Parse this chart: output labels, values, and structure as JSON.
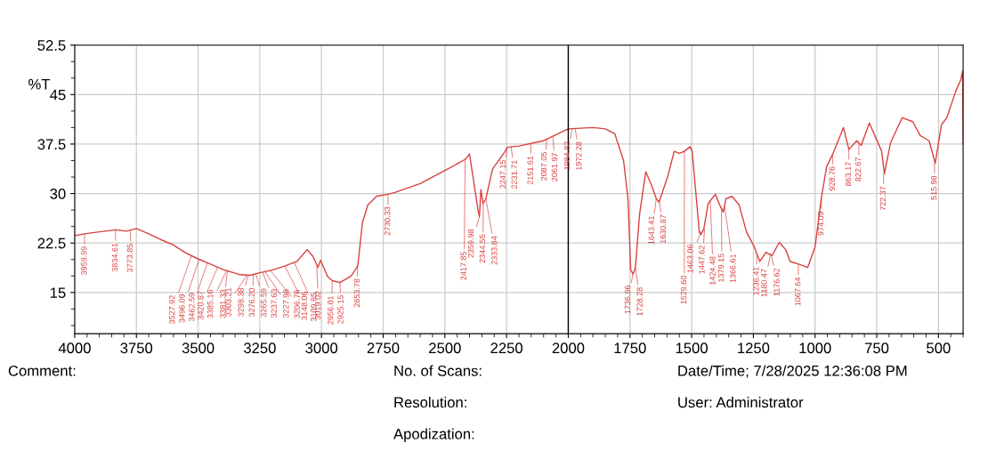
{
  "chart_data": {
    "type": "line",
    "ylabel": "%T",
    "x": [
      4000,
      3960,
      3900,
      3834,
      3790,
      3750,
      3700,
      3650,
      3600,
      3550,
      3500,
      3450,
      3400,
      3330,
      3290,
      3250,
      3200,
      3150,
      3100,
      3058,
      3035,
      3014,
      3004,
      2975,
      2956,
      2925,
      2880,
      2853,
      2834,
      2812,
      2776,
      2730,
      2700,
      2600,
      2500,
      2450,
      2417,
      2400,
      2365,
      2360,
      2354,
      2345,
      2334,
      2307,
      2256,
      2247,
      2200,
      2100,
      2000,
      1900,
      1850,
      1812,
      1776,
      1758,
      1747,
      1737,
      1728,
      1711,
      1686,
      1660,
      1643,
      1632,
      1596,
      1571,
      1549,
      1530,
      1506,
      1498,
      1469,
      1463,
      1451,
      1433,
      1404,
      1387,
      1372,
      1361,
      1337,
      1308,
      1278,
      1246,
      1224,
      1199,
      1174,
      1145,
      1119,
      1101,
      1067,
      1030,
      1000,
      975,
      953,
      928,
      885,
      863,
      831,
      813,
      780,
      730,
      719,
      694,
      647,
      604,
      574,
      538,
      513,
      488,
      466,
      430,
      410,
      402,
      400
    ],
    "series": [
      {
        "color": "#d9413f",
        "values": [
          23.6,
          23.9,
          24.2,
          24.5,
          24.3,
          24.7,
          23.9,
          23.0,
          22.2,
          21.0,
          20.1,
          19.3,
          18.5,
          17.7,
          17.6,
          18.0,
          18.4,
          19.0,
          19.7,
          21.5,
          20.5,
          18.8,
          19.9,
          17.4,
          16.8,
          16.5,
          17.5,
          19.0,
          25.6,
          28.3,
          29.6,
          29.9,
          30.2,
          31.5,
          33.5,
          34.5,
          35.2,
          36.0,
          27.3,
          26.5,
          30.6,
          28.5,
          29.2,
          33.7,
          36.4,
          37.0,
          37.2,
          38.0,
          39.8,
          40.0,
          39.8,
          39.1,
          35.0,
          29.2,
          18.4,
          17.8,
          18.8,
          26.9,
          33.3,
          31.0,
          29.2,
          28.7,
          32.7,
          36.4,
          36.1,
          36.4,
          37.1,
          36.4,
          24.2,
          23.8,
          24.6,
          28.5,
          29.9,
          28.3,
          27.2,
          29.2,
          29.6,
          28.3,
          24.2,
          21.9,
          19.7,
          21.1,
          20.6,
          22.6,
          21.5,
          19.7,
          19.3,
          18.8,
          21.9,
          29.2,
          34.1,
          36.0,
          40.0,
          36.7,
          38.0,
          37.3,
          40.7,
          36.4,
          33.0,
          37.7,
          41.5,
          40.9,
          38.8,
          38.0,
          34.6,
          40.4,
          41.5,
          45.5,
          47.2,
          48.6,
          37.5
        ]
      }
    ],
    "xlim": [
      4000,
      400
    ],
    "xticks": [
      4000,
      3750,
      3500,
      3250,
      3000,
      2750,
      2500,
      2250,
      2000,
      1750,
      1500,
      1250,
      1000,
      750,
      500
    ],
    "ylim": [
      8.75,
      52.5
    ],
    "yticks": [
      15,
      22.5,
      30,
      37.5,
      45,
      52.5
    ],
    "grid": true,
    "ref_lines": [
      {
        "axis": "x",
        "value": 2000,
        "color": "#000000"
      }
    ],
    "annotations": [
      {
        "text": "3959.99",
        "x": 3959.99,
        "y": 23.9
      },
      {
        "text": "3834.61",
        "x": 3834.61,
        "y": 24.4
      },
      {
        "text": "3773.85",
        "x": 3773.85,
        "y": 24.3
      },
      {
        "text": "3527.92",
        "x": 3527.92,
        "y": 20.5
      },
      {
        "text": "3496.09",
        "x": 3496.09,
        "y": 20.0
      },
      {
        "text": "3462.59",
        "x": 3462.59,
        "y": 19.5
      },
      {
        "text": "3420.87",
        "x": 3420.87,
        "y": 18.8
      },
      {
        "text": "3385.16",
        "x": 3385.16,
        "y": 18.3
      },
      {
        "text": "3381.33",
        "x": 3381.33,
        "y": 18.2
      },
      {
        "text": "3303.21",
        "x": 3303.21,
        "y": 17.6
      },
      {
        "text": "3298.38",
        "x": 3298.38,
        "y": 17.6
      },
      {
        "text": "3276.20",
        "x": 3276.2,
        "y": 17.7
      },
      {
        "text": "3265.59",
        "x": 3265.59,
        "y": 17.8
      },
      {
        "text": "3237.63",
        "x": 3237.63,
        "y": 18.0
      },
      {
        "text": "3227.98",
        "x": 3227.98,
        "y": 18.1
      },
      {
        "text": "3206.76",
        "x": 3206.76,
        "y": 18.3
      },
      {
        "text": "3148.06",
        "x": 3148.06,
        "y": 19.0
      },
      {
        "text": "3109.85",
        "x": 3109.85,
        "y": 19.5
      },
      {
        "text": "3019.02",
        "x": 3019.02,
        "y": 18.8
      },
      {
        "text": "2956.01",
        "x": 2956.01,
        "y": 16.8
      },
      {
        "text": "2925.15",
        "x": 2925.15,
        "y": 16.5
      },
      {
        "text": "2853.78",
        "x": 2853.78,
        "y": 19.0
      },
      {
        "text": "2730.33",
        "x": 2730.33,
        "y": 29.9
      },
      {
        "text": "2417.85",
        "x": 2417.85,
        "y": 35.2
      },
      {
        "text": "2359.98",
        "x": 2359.98,
        "y": 26.5
      },
      {
        "text": "2344.55",
        "x": 2344.55,
        "y": 28.5
      },
      {
        "text": "2333.84",
        "x": 2333.84,
        "y": 29.2
      },
      {
        "text": "2247.15",
        "x": 2247.15,
        "y": 37.0
      },
      {
        "text": "2231.71",
        "x": 2231.71,
        "y": 37.1
      },
      {
        "text": "2151.61",
        "x": 2151.61,
        "y": 37.6
      },
      {
        "text": "2087.05",
        "x": 2087.05,
        "y": 38.2
      },
      {
        "text": "2061.97",
        "x": 2061.97,
        "y": 38.5
      },
      {
        "text": "1984.82",
        "x": 1984.82,
        "y": 39.8
      },
      {
        "text": "1972.28",
        "x": 1972.28,
        "y": 39.9
      },
      {
        "text": "1736.96",
        "x": 1736.96,
        "y": 18.0
      },
      {
        "text": "1728.28",
        "x": 1728.28,
        "y": 18.8
      },
      {
        "text": "1643.41",
        "x": 1643.41,
        "y": 29.2
      },
      {
        "text": "1630.87",
        "x": 1630.87,
        "y": 28.7
      },
      {
        "text": "1529.60",
        "x": 1529.6,
        "y": 36.4
      },
      {
        "text": "1463.06",
        "x": 1463.06,
        "y": 24.2
      },
      {
        "text": "1447.62",
        "x": 1447.62,
        "y": 24.6
      },
      {
        "text": "1424.48",
        "x": 1424.48,
        "y": 28.9
      },
      {
        "text": "1379.15",
        "x": 1379.15,
        "y": 27.8
      },
      {
        "text": "1366.61",
        "x": 1366.61,
        "y": 28.0
      },
      {
        "text": "1236.41",
        "x": 1236.41,
        "y": 20.8
      },
      {
        "text": "1180.47",
        "x": 1180.47,
        "y": 20.9
      },
      {
        "text": "1176.62",
        "x": 1176.62,
        "y": 20.6
      },
      {
        "text": "1067.64",
        "x": 1067.64,
        "y": 19.2
      },
      {
        "text": "974.09",
        "x": 974.09,
        "y": 29.2
      },
      {
        "text": "928.76",
        "x": 928.76,
        "y": 36.0
      },
      {
        "text": "863.17",
        "x": 863.17,
        "y": 36.7
      },
      {
        "text": "822.67",
        "x": 822.67,
        "y": 37.4
      },
      {
        "text": "722.37",
        "x": 722.37,
        "y": 33.0
      },
      {
        "text": "515.98",
        "x": 515.98,
        "y": 34.6
      },
      "Comment:",
      "No. of Scans:",
      "Date/Time; 7/28/2025 12:36:08 PM",
      "Resolution:",
      "User: Administrator",
      "Apodization:"
    ]
  }
}
